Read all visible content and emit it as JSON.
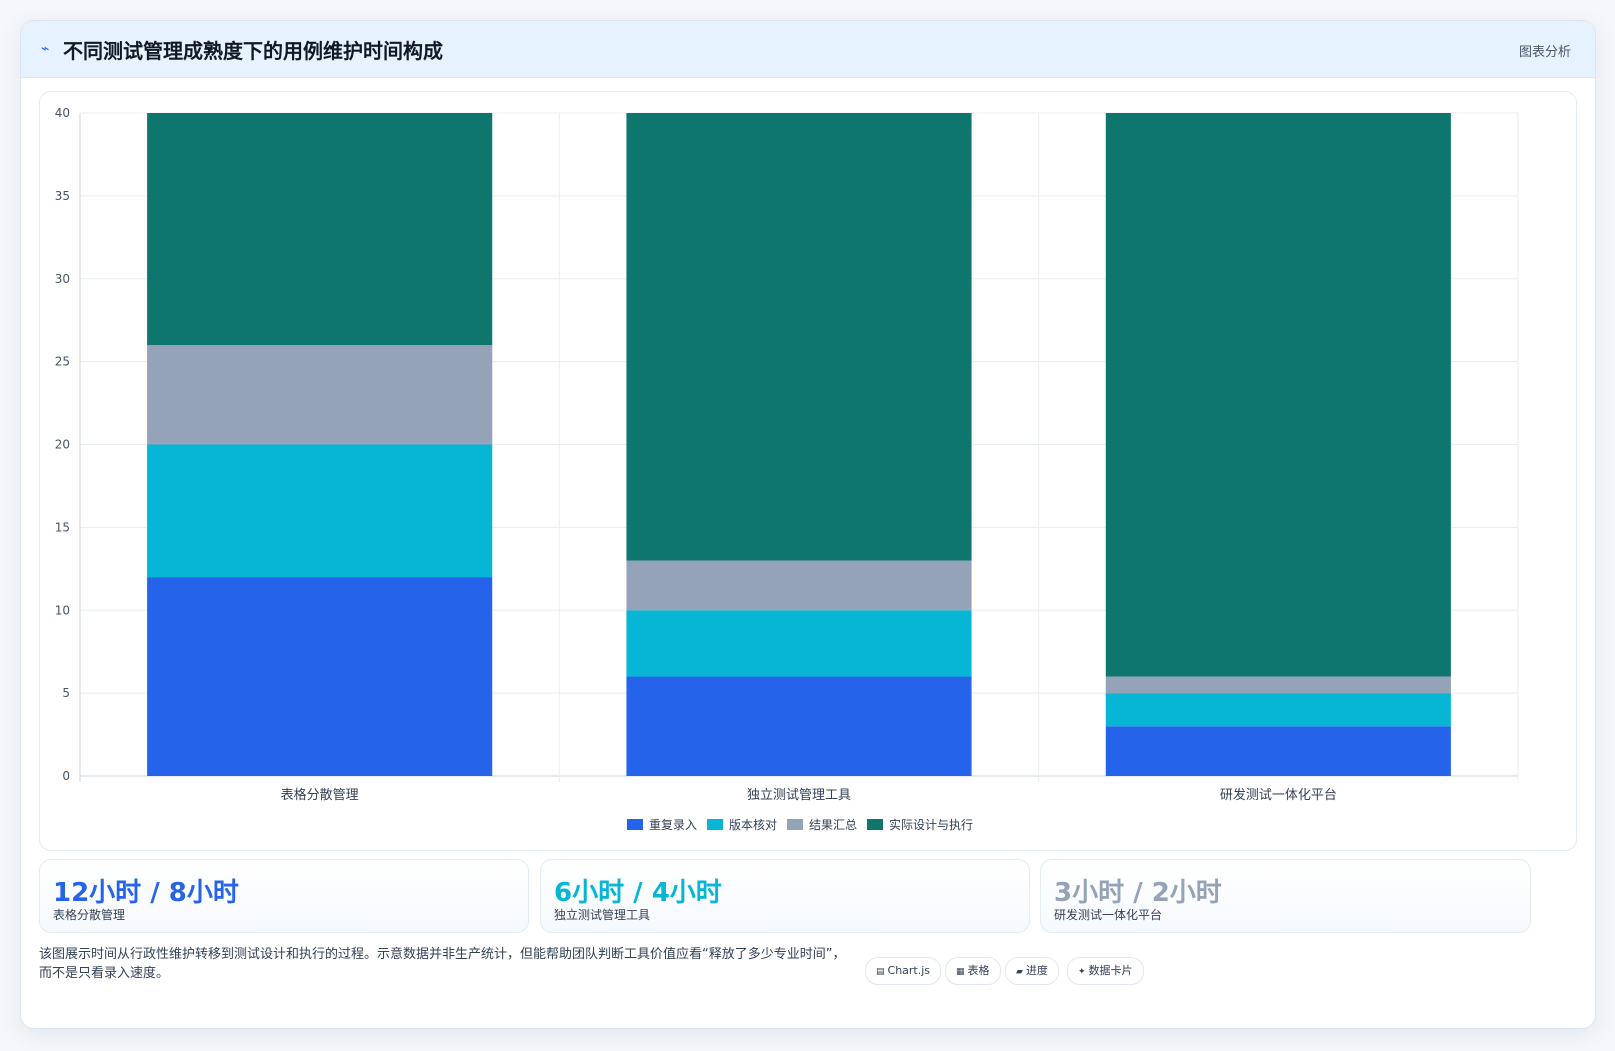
{
  "header": {
    "icon": "⌁",
    "title": "不同测试管理成熟度下的用例维护时间构成",
    "action_label": "图表分析"
  },
  "chart_data": {
    "type": "bar",
    "stacked": true,
    "categories": [
      "表格分散管理",
      "独立测试管理工具",
      "研发测试一体化平台"
    ],
    "series": [
      {
        "name": "重复录入",
        "values": [
          12,
          6,
          3
        ],
        "color": "#2563eb"
      },
      {
        "name": "版本核对",
        "values": [
          8,
          4,
          2
        ],
        "color": "#06b6d4"
      },
      {
        "name": "结果汇总",
        "values": [
          6,
          3,
          1
        ],
        "color": "#94a3b8"
      },
      {
        "name": "实际设计与执行",
        "values": [
          14,
          27,
          34
        ],
        "color": "#0f766e"
      }
    ],
    "yticks": [
      "0",
      "5",
      "10",
      "15",
      "20",
      "25",
      "30",
      "35",
      "40"
    ],
    "ylim": [
      0,
      40
    ],
    "grid": true,
    "legend": "bottom"
  },
  "stats": [
    {
      "value": "12小时 / 8小时",
      "label": "表格分散管理",
      "color": "#2563eb"
    },
    {
      "value": "6小时 / 4小时",
      "label": "独立测试管理工具",
      "color": "#06b6d4"
    },
    {
      "value": "3小时 / 2小时",
      "label": "研发测试一体化平台",
      "color": "#94a3b8"
    }
  ],
  "note": "该图展示时间从行政性维护转移到测试设计和执行的过程。示意数据并非生产统计，但能帮助团队判断工具价值应看“释放了多少专业时间”，而不是只看录入速度。",
  "chips": [
    {
      "icon": "▤",
      "label": "Chart.js"
    },
    {
      "icon": "▦",
      "label": "表格"
    },
    {
      "icon": "▰",
      "label": "进度"
    },
    {
      "icon": "✦",
      "label": "数据卡片"
    }
  ]
}
